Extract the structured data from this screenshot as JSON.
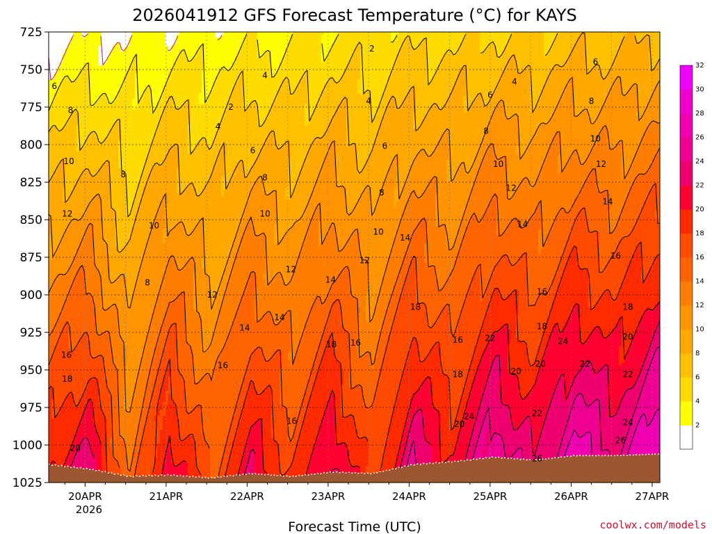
{
  "chart_data": {
    "type": "heatmap",
    "title": "2026041912 GFS Forecast Temperature (°C) for KAYS",
    "xlabel": "Forecast Time (UTC)",
    "ylabel": "",
    "credit": "coolwx.com/models",
    "x_ticks": [
      "20APR",
      "21APR",
      "22APR",
      "23APR",
      "24APR",
      "25APR",
      "26APR",
      "27APR"
    ],
    "x_year_label": "2026",
    "y_ticks": [
      725,
      750,
      775,
      800,
      825,
      850,
      875,
      900,
      925,
      950,
      975,
      1000,
      1025
    ],
    "ylim": [
      725,
      1025
    ],
    "xlim_days": [
      -0.45,
      7.0
    ],
    "colorbar": {
      "levels": [
        2,
        4,
        6,
        8,
        10,
        12,
        14,
        16,
        18,
        20,
        22,
        24,
        26,
        28,
        30,
        32
      ],
      "colors": [
        "#ffffff",
        "#ffff00",
        "#ffdc00",
        "#ffc000",
        "#ffa800",
        "#ff9400",
        "#ff7e00",
        "#ff6400",
        "#ff4a00",
        "#ff2a00",
        "#ff0030",
        "#f0006e",
        "#f00090",
        "#f000b0",
        "#f000d0",
        "#f000ff"
      ]
    },
    "series": [
      {
        "name": "surface_temp",
        "values": [
          20,
          23,
          14,
          22,
          16,
          22,
          18,
          23,
          17,
          24,
          20,
          26,
          22,
          27,
          24,
          28
        ]
      },
      {
        "name": "surface_pressure",
        "values": [
          1013,
          1016,
          1021,
          1020,
          1022,
          1019,
          1021,
          1018,
          1019,
          1013,
          1011,
          1008,
          1010,
          1007,
          1007,
          1006
        ]
      }
    ],
    "contour_labels": [
      {
        "text": "2",
        "day": 3.54,
        "p": 736
      },
      {
        "text": "2",
        "day": 1.8,
        "p": 775
      },
      {
        "text": "4",
        "day": 2.22,
        "p": 754
      },
      {
        "text": "4",
        "day": 1.64,
        "p": 788
      },
      {
        "text": "4",
        "day": 3.5,
        "p": 771
      },
      {
        "text": "4",
        "day": 5.3,
        "p": 758
      },
      {
        "text": "6",
        "day": -0.38,
        "p": 761
      },
      {
        "text": "6",
        "day": 2.07,
        "p": 804
      },
      {
        "text": "6",
        "day": 3.7,
        "p": 801
      },
      {
        "text": "6",
        "day": 5.0,
        "p": 767
      },
      {
        "text": "6",
        "day": 6.3,
        "p": 745
      },
      {
        "text": "8",
        "day": -0.18,
        "p": 777
      },
      {
        "text": "8",
        "day": 0.47,
        "p": 820
      },
      {
        "text": "8",
        "day": 2.22,
        "p": 822
      },
      {
        "text": "8",
        "day": 3.66,
        "p": 832
      },
      {
        "text": "8",
        "day": 4.95,
        "p": 791
      },
      {
        "text": "8",
        "day": 6.25,
        "p": 771
      },
      {
        "text": "8",
        "day": 0.77,
        "p": 892
      },
      {
        "text": "10",
        "day": -0.2,
        "p": 811
      },
      {
        "text": "10",
        "day": 0.85,
        "p": 854
      },
      {
        "text": "10",
        "day": 2.22,
        "p": 846
      },
      {
        "text": "10",
        "day": 3.62,
        "p": 858
      },
      {
        "text": "10",
        "day": 5.1,
        "p": 813
      },
      {
        "text": "10",
        "day": 6.3,
        "p": 796
      },
      {
        "text": "12",
        "day": -0.22,
        "p": 846
      },
      {
        "text": "12",
        "day": 1.57,
        "p": 900
      },
      {
        "text": "12",
        "day": 2.54,
        "p": 883
      },
      {
        "text": "12",
        "day": 3.45,
        "p": 877
      },
      {
        "text": "12",
        "day": 5.26,
        "p": 829
      },
      {
        "text": "12",
        "day": 6.37,
        "p": 813
      },
      {
        "text": "14",
        "day": 1.97,
        "p": 922
      },
      {
        "text": "14",
        "day": 2.4,
        "p": 915
      },
      {
        "text": "14",
        "day": 3.03,
        "p": 890
      },
      {
        "text": "14",
        "day": 3.95,
        "p": 862
      },
      {
        "text": "14",
        "day": 5.4,
        "p": 853
      },
      {
        "text": "14",
        "day": 6.45,
        "p": 838
      },
      {
        "text": "16",
        "day": -0.23,
        "p": 940
      },
      {
        "text": "16",
        "day": 1.7,
        "p": 947
      },
      {
        "text": "16",
        "day": 2.55,
        "p": 984
      },
      {
        "text": "16",
        "day": 3.34,
        "p": 932
      },
      {
        "text": "16",
        "day": 4.6,
        "p": 930
      },
      {
        "text": "16",
        "day": 5.64,
        "p": 898
      },
      {
        "text": "16",
        "day": 6.55,
        "p": 874
      },
      {
        "text": "18",
        "day": -0.22,
        "p": 956
      },
      {
        "text": "18",
        "day": 3.04,
        "p": 933
      },
      {
        "text": "18",
        "day": 4.08,
        "p": 908
      },
      {
        "text": "18",
        "day": 4.6,
        "p": 953
      },
      {
        "text": "18",
        "day": 5.64,
        "p": 921
      },
      {
        "text": "18",
        "day": 6.7,
        "p": 908
      },
      {
        "text": "20",
        "day": -0.12,
        "p": 1002
      },
      {
        "text": "20",
        "day": 4.62,
        "p": 986
      },
      {
        "text": "20",
        "day": 5.32,
        "p": 951
      },
      {
        "text": "20",
        "day": 5.62,
        "p": 946
      },
      {
        "text": "20",
        "day": 6.7,
        "p": 928
      },
      {
        "text": "22",
        "day": 5.0,
        "p": 929
      },
      {
        "text": "22",
        "day": 5.58,
        "p": 979
      },
      {
        "text": "22",
        "day": 6.17,
        "p": 946
      },
      {
        "text": "22",
        "day": 6.7,
        "p": 953
      },
      {
        "text": "24",
        "day": 4.74,
        "p": 981
      },
      {
        "text": "24",
        "day": 5.9,
        "p": 931
      },
      {
        "text": "24",
        "day": 6.7,
        "p": 985
      },
      {
        "text": "26",
        "day": 5.58,
        "p": 1009
      },
      {
        "text": "26",
        "day": 6.61,
        "p": 997
      }
    ]
  }
}
